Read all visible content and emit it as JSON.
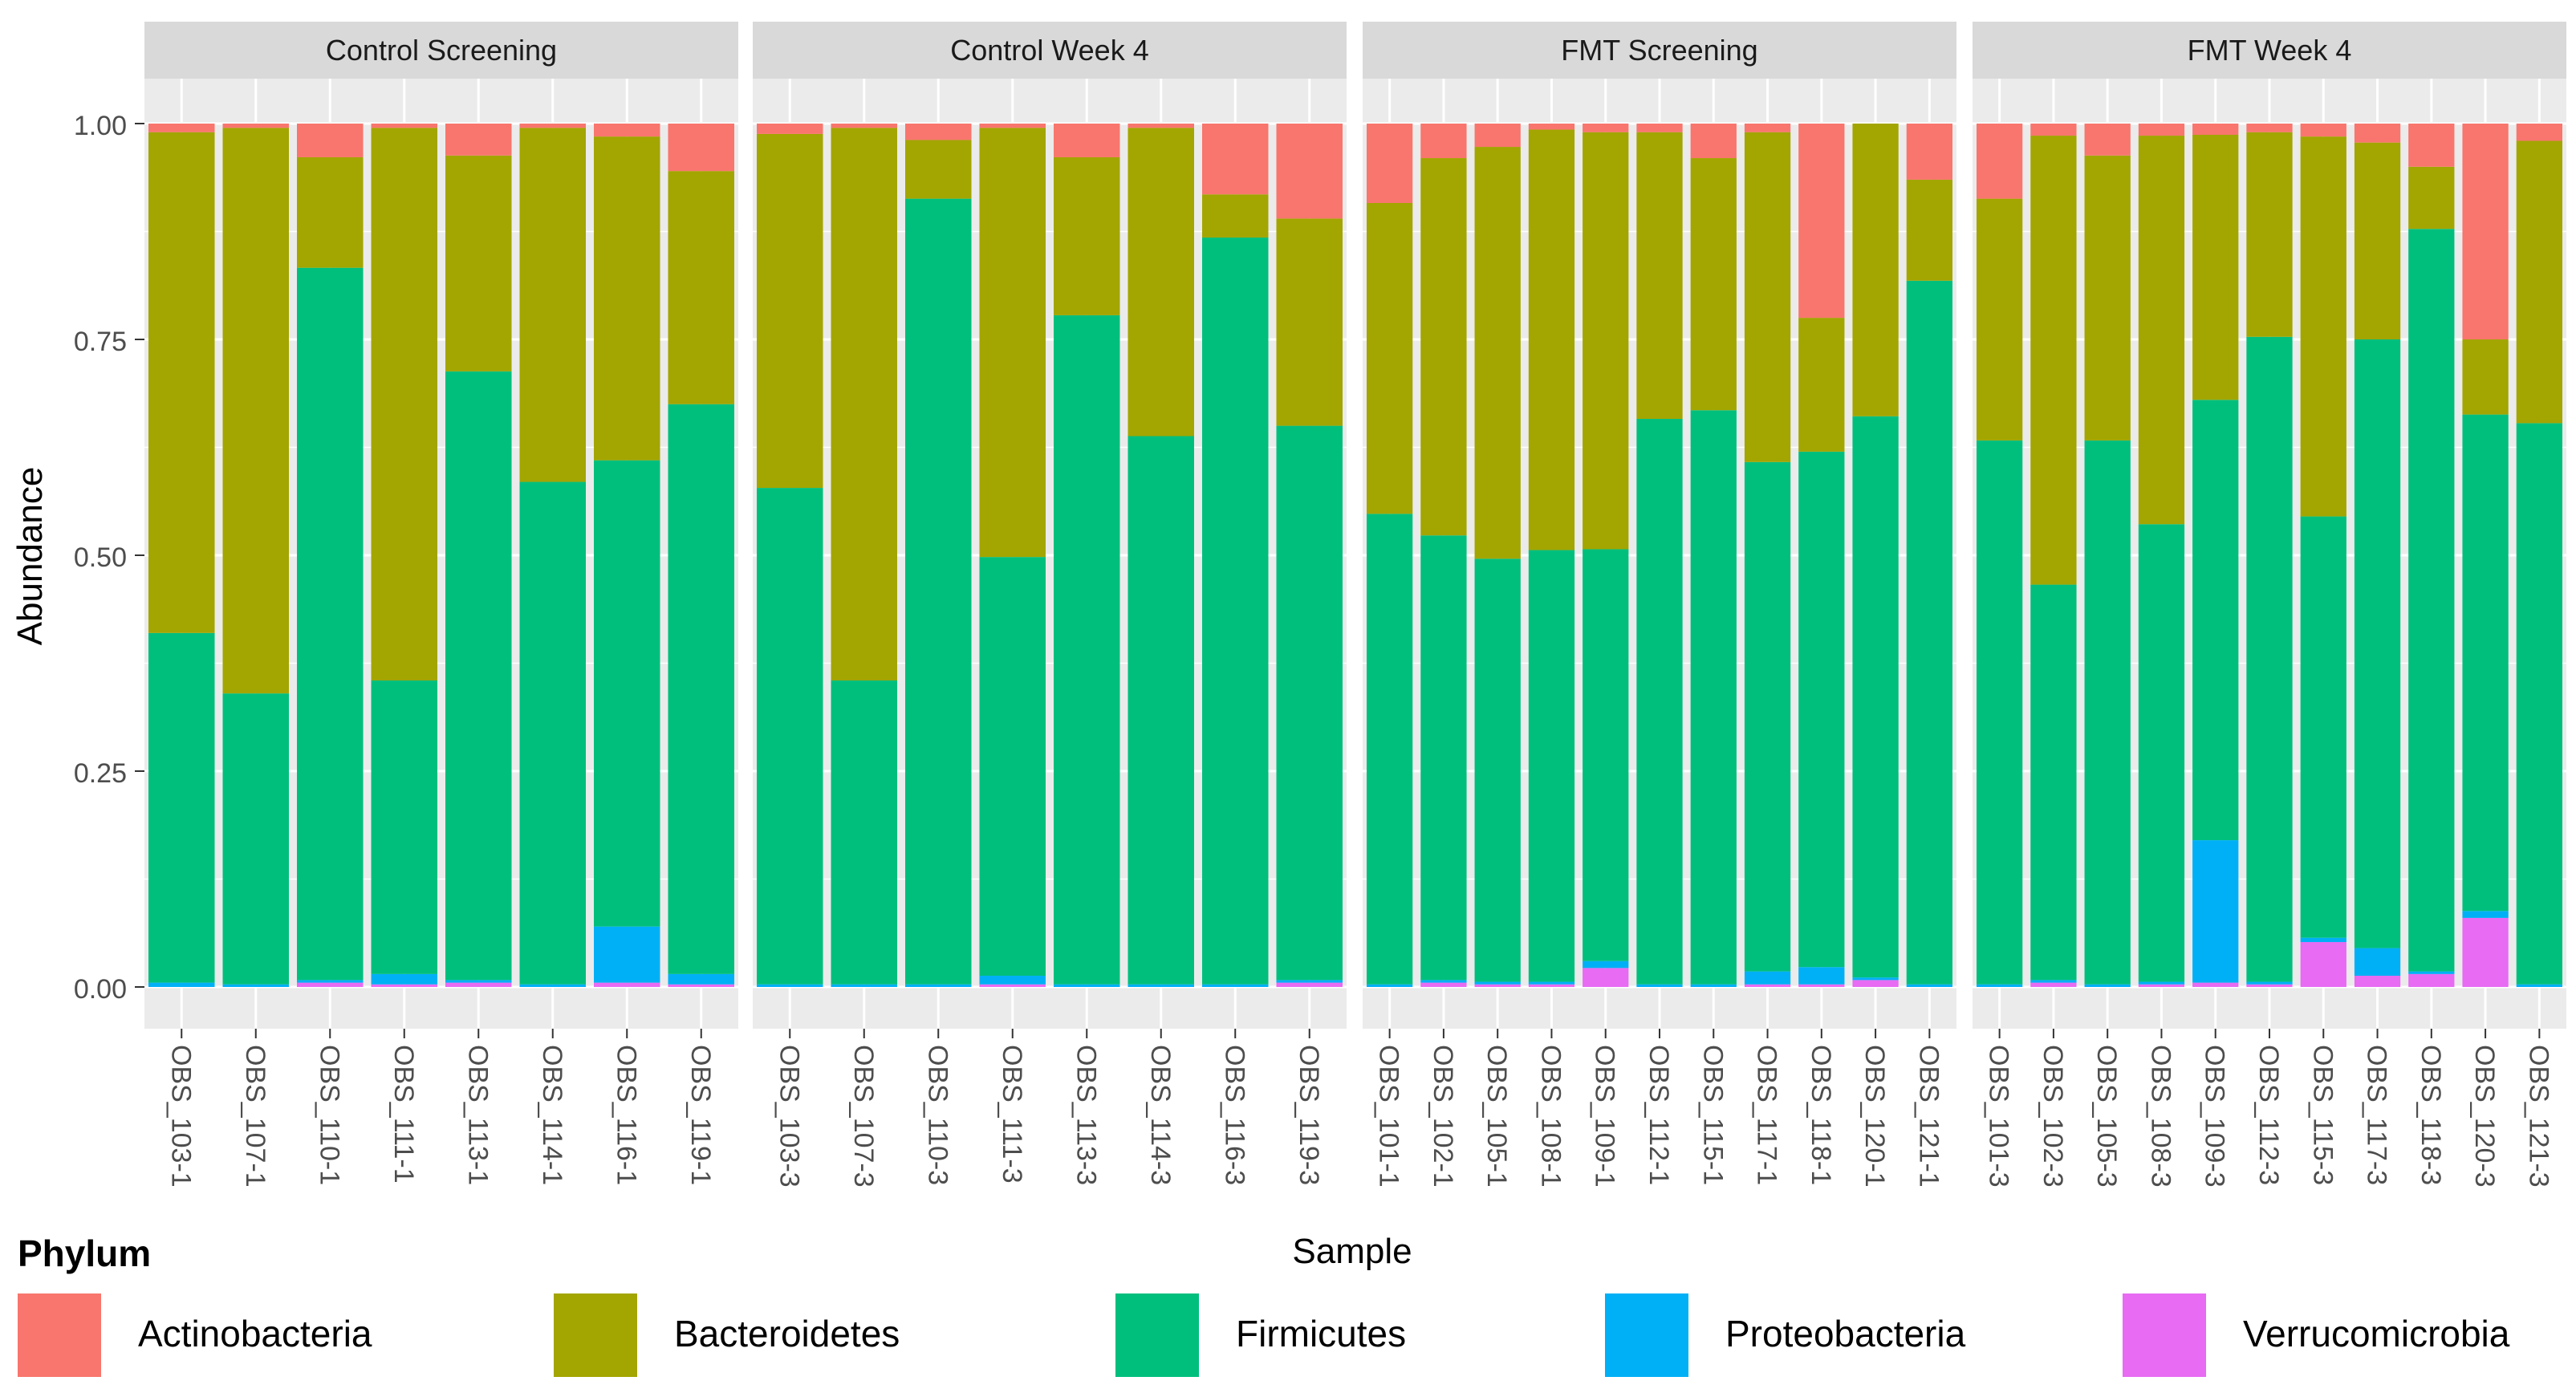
{
  "chart_data": {
    "type": "bar",
    "stacked": true,
    "facets": [
      "Control Screening",
      "Control Week 4",
      "FMT Screening",
      "FMT Week 4"
    ],
    "ylabel": "Abundance",
    "xlabel": "Sample",
    "ylim": [
      0,
      1
    ],
    "yticks": [
      "0.00",
      "0.25",
      "0.50",
      "0.75",
      "1.00"
    ],
    "ytick_values": [
      0,
      0.25,
      0.5,
      0.75,
      1
    ],
    "legend_title": "Phylum",
    "series": [
      {
        "name": "Actinobacteria",
        "color": "#F8766D"
      },
      {
        "name": "Bacteroidetes",
        "color": "#A3A500"
      },
      {
        "name": "Firmicutes",
        "color": "#00BF7D"
      },
      {
        "name": "Proteobacteria",
        "color": "#00B0F6"
      },
      {
        "name": "Verrucomicrobia",
        "color": "#E76BF3"
      }
    ],
    "stack_order_bottom_to_top": [
      "Verrucomicrobia",
      "Proteobacteria",
      "Firmicutes",
      "Bacteroidetes",
      "Actinobacteria"
    ],
    "panels": [
      {
        "title": "Control Screening",
        "samples": [
          "OBS_103-1",
          "OBS_107-1",
          "OBS_110-1",
          "OBS_111-1",
          "OBS_113-1",
          "OBS_114-1",
          "OBS_116-1",
          "OBS_119-1"
        ],
        "values": {
          "Verrucomicrobia": [
            0.0,
            0.0,
            0.005,
            0.003,
            0.005,
            0.0,
            0.005,
            0.003
          ],
          "Proteobacteria": [
            0.005,
            0.003,
            0.003,
            0.012,
            0.003,
            0.003,
            0.065,
            0.012
          ],
          "Firmicutes": [
            0.405,
            0.337,
            0.825,
            0.34,
            0.705,
            0.582,
            0.54,
            0.66
          ],
          "Bacteroidetes": [
            0.58,
            0.655,
            0.128,
            0.64,
            0.25,
            0.41,
            0.375,
            0.27
          ],
          "Actinobacteria": [
            0.01,
            0.005,
            0.039,
            0.005,
            0.037,
            0.005,
            0.015,
            0.055
          ]
        }
      },
      {
        "title": "Control Week 4",
        "samples": [
          "OBS_103-3",
          "OBS_107-3",
          "OBS_110-3",
          "OBS_111-3",
          "OBS_113-3",
          "OBS_114-3",
          "OBS_116-3",
          "OBS_119-3"
        ],
        "values": {
          "Verrucomicrobia": [
            0.0,
            0.0,
            0.0,
            0.003,
            0.0,
            0.0,
            0.0,
            0.005
          ],
          "Proteobacteria": [
            0.003,
            0.003,
            0.003,
            0.01,
            0.003,
            0.003,
            0.003,
            0.003
          ],
          "Firmicutes": [
            0.575,
            0.352,
            0.91,
            0.485,
            0.775,
            0.635,
            0.865,
            0.642
          ],
          "Bacteroidetes": [
            0.41,
            0.64,
            0.068,
            0.497,
            0.183,
            0.357,
            0.05,
            0.24
          ],
          "Actinobacteria": [
            0.012,
            0.005,
            0.019,
            0.005,
            0.039,
            0.005,
            0.082,
            0.11
          ]
        }
      },
      {
        "title": "FMT Screening",
        "samples": [
          "OBS_101-1",
          "OBS_102-1",
          "OBS_105-1",
          "OBS_108-1",
          "OBS_109-1",
          "OBS_112-1",
          "OBS_115-1",
          "OBS_117-1",
          "OBS_118-1",
          "OBS_120-1",
          "OBS_121-1"
        ],
        "values": {
          "Verrucomicrobia": [
            0.0,
            0.005,
            0.003,
            0.003,
            0.022,
            0.0,
            0.0,
            0.003,
            0.003,
            0.008,
            0.0
          ],
          "Proteobacteria": [
            0.003,
            0.003,
            0.003,
            0.003,
            0.008,
            0.003,
            0.003,
            0.015,
            0.02,
            0.003,
            0.003
          ],
          "Firmicutes": [
            0.545,
            0.515,
            0.49,
            0.5,
            0.477,
            0.655,
            0.665,
            0.59,
            0.597,
            0.65,
            0.815
          ],
          "Bacteroidetes": [
            0.36,
            0.437,
            0.477,
            0.487,
            0.483,
            0.332,
            0.292,
            0.382,
            0.155,
            0.339,
            0.117
          ],
          "Actinobacteria": [
            0.092,
            0.04,
            0.027,
            0.007,
            0.01,
            0.01,
            0.04,
            0.01,
            0.225,
            0.0,
            0.065
          ]
        }
      },
      {
        "title": "FMT Week 4",
        "samples": [
          "OBS_101-3",
          "OBS_102-3",
          "OBS_105-3",
          "OBS_108-3",
          "OBS_109-3",
          "OBS_112-3",
          "OBS_115-3",
          "OBS_117-3",
          "OBS_118-3",
          "OBS_120-3",
          "OBS_121-3"
        ],
        "values": {
          "Verrucomicrobia": [
            0.0,
            0.005,
            0.0,
            0.003,
            0.005,
            0.003,
            0.052,
            0.013,
            0.015,
            0.08,
            0.0
          ],
          "Proteobacteria": [
            0.003,
            0.003,
            0.003,
            0.003,
            0.165,
            0.003,
            0.005,
            0.032,
            0.003,
            0.008,
            0.003
          ],
          "Firmicutes": [
            0.63,
            0.458,
            0.63,
            0.53,
            0.51,
            0.747,
            0.488,
            0.705,
            0.86,
            0.575,
            0.65
          ],
          "Bacteroidetes": [
            0.28,
            0.52,
            0.33,
            0.45,
            0.307,
            0.237,
            0.44,
            0.228,
            0.072,
            0.087,
            0.327
          ],
          "Actinobacteria": [
            0.087,
            0.014,
            0.037,
            0.014,
            0.013,
            0.01,
            0.015,
            0.022,
            0.05,
            0.25,
            0.02
          ]
        }
      }
    ]
  }
}
